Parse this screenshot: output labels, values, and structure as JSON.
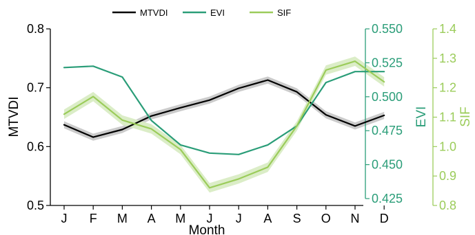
{
  "chart_data": {
    "type": "line",
    "xlabel": "Month",
    "categories": [
      "J",
      "F",
      "M",
      "A",
      "M",
      "J",
      "J",
      "A",
      "S",
      "O",
      "N",
      "D"
    ],
    "axes": {
      "left": {
        "label": "MTVDI",
        "ylim": [
          0.5,
          0.8
        ],
        "ticks": [
          "0.5",
          "0.6",
          "0.7",
          "0.8"
        ],
        "color": "#000000"
      },
      "right1": {
        "label": "EVI",
        "ylim": [
          0.425,
          0.55
        ],
        "ticks": [
          "0.425",
          "0.450",
          "0.475",
          "0.500",
          "0.525",
          "0.550"
        ],
        "color": "#2a9d78"
      },
      "right2": {
        "label": "SIF",
        "ylim": [
          0.8,
          1.4
        ],
        "ticks": [
          "0.8",
          "0.9",
          "1.0",
          "1.1",
          "1.2",
          "1.3",
          "1.4"
        ],
        "color": "#9bcc5a"
      }
    },
    "series": [
      {
        "name": "MTVDI",
        "axis": "left",
        "color": "#000000",
        "band_color": "#c8c8c8",
        "band_halfwidth": 0.006,
        "values": [
          0.637,
          0.616,
          0.629,
          0.652,
          0.666,
          0.679,
          0.699,
          0.713,
          0.693,
          0.654,
          0.635,
          0.653
        ]
      },
      {
        "name": "EVI",
        "axis": "right1",
        "color": "#2a9d78",
        "values": [
          0.5215,
          0.5225,
          0.5145,
          0.4825,
          0.4645,
          0.4585,
          0.4575,
          0.4645,
          0.4785,
          0.5105,
          0.5185,
          0.5185
        ]
      },
      {
        "name": "SIF",
        "axis": "right2",
        "color": "#9bcc5a",
        "band_color": "#d9ecc4",
        "band_halfwidth": 0.008,
        "values": [
          1.11,
          1.17,
          1.09,
          1.06,
          0.99,
          0.86,
          0.89,
          0.93,
          1.07,
          1.26,
          1.29,
          1.22
        ]
      }
    ],
    "legend": {
      "placement": "top",
      "entries": [
        "MTVDI",
        "EVI",
        "SIF"
      ]
    },
    "grid": false
  }
}
